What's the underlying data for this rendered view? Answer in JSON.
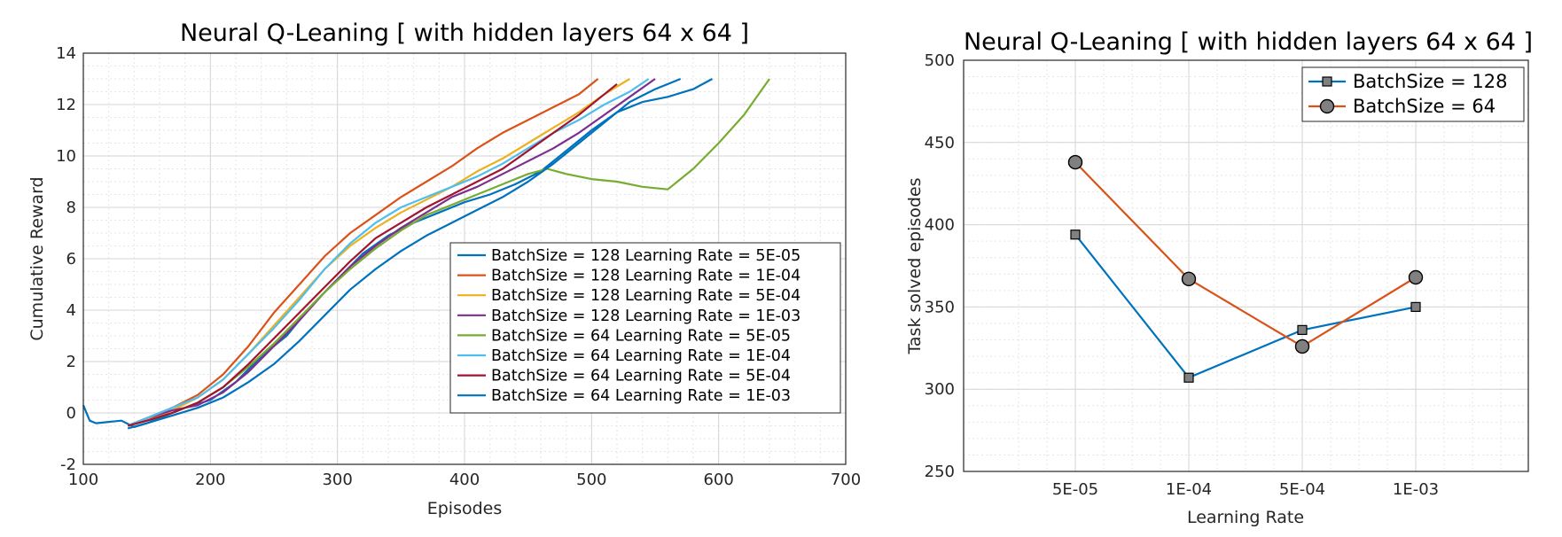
{
  "chart_data": [
    {
      "type": "line",
      "title": "Neural Q-Leaning [ with hidden layers 64 x 64 ]",
      "xlabel": "Episodes",
      "ylabel": "Cumulative Reward",
      "xlim": [
        100,
        700
      ],
      "ylim": [
        -2,
        14
      ],
      "xticks": [
        "100",
        "200",
        "300",
        "400",
        "500",
        "600",
        "700"
      ],
      "yticks": [
        "-2",
        "0",
        "2",
        "4",
        "6",
        "8",
        "10",
        "12",
        "14"
      ],
      "grid": true,
      "legend_position": "center-right",
      "series": [
        {
          "name": "BatchSize = 128 Learning Rate = 5E-05",
          "color": "#0072BD",
          "x": [
            100,
            105,
            110,
            120,
            130,
            140,
            150,
            160,
            170,
            180,
            200,
            220,
            240,
            260,
            280,
            300,
            320,
            340,
            360,
            380,
            400,
            420,
            440,
            460,
            480,
            500,
            520,
            540,
            560,
            580,
            595
          ],
          "y": [
            0.3,
            -0.3,
            -0.4,
            -0.35,
            -0.3,
            -0.55,
            -0.4,
            -0.2,
            0.0,
            0.2,
            0.5,
            1.2,
            2.2,
            3.0,
            4.2,
            5.2,
            6.2,
            6.9,
            7.4,
            7.8,
            8.2,
            8.5,
            8.9,
            9.4,
            10.2,
            11.0,
            11.7,
            12.1,
            12.3,
            12.6,
            13.0
          ]
        },
        {
          "name": "BatchSize = 128 Learning Rate = 1E-04",
          "color": "#D95319",
          "x": [
            135,
            150,
            170,
            190,
            210,
            230,
            250,
            270,
            290,
            310,
            330,
            350,
            370,
            390,
            410,
            430,
            450,
            470,
            490,
            505
          ],
          "y": [
            -0.5,
            -0.2,
            0.2,
            0.7,
            1.5,
            2.6,
            3.9,
            5.0,
            6.1,
            7.0,
            7.7,
            8.4,
            9.0,
            9.6,
            10.3,
            10.9,
            11.4,
            11.9,
            12.4,
            13.0
          ]
        },
        {
          "name": "BatchSize = 128 Learning Rate = 5E-04",
          "color": "#EDB120",
          "x": [
            135,
            150,
            170,
            190,
            210,
            230,
            250,
            270,
            290,
            310,
            330,
            350,
            370,
            390,
            410,
            430,
            450,
            470,
            490,
            510,
            530
          ],
          "y": [
            -0.5,
            -0.3,
            0.1,
            0.6,
            1.3,
            2.3,
            3.4,
            4.5,
            5.6,
            6.5,
            7.2,
            7.8,
            8.3,
            8.8,
            9.4,
            9.9,
            10.5,
            11.1,
            11.7,
            12.4,
            13.0
          ]
        },
        {
          "name": "BatchSize = 128 Learning Rate = 1E-03",
          "color": "#7E2F8E",
          "x": [
            135,
            150,
            170,
            190,
            210,
            230,
            250,
            270,
            290,
            310,
            330,
            350,
            370,
            390,
            410,
            430,
            450,
            470,
            490,
            510,
            530,
            550
          ],
          "y": [
            -0.5,
            -0.2,
            0.1,
            0.3,
            0.8,
            1.6,
            2.6,
            3.6,
            4.7,
            5.7,
            6.5,
            7.2,
            7.8,
            8.4,
            8.8,
            9.3,
            9.8,
            10.3,
            10.9,
            11.6,
            12.3,
            13.0
          ]
        },
        {
          "name": "BatchSize = 64  Learning Rate = 5E-05",
          "color": "#77AC30",
          "x": [
            135,
            150,
            170,
            190,
            210,
            230,
            250,
            270,
            290,
            310,
            330,
            350,
            370,
            390,
            410,
            430,
            450,
            465,
            480,
            500,
            520,
            540,
            560,
            580,
            600,
            620,
            640
          ],
          "y": [
            -0.5,
            -0.3,
            0.0,
            0.4,
            1.0,
            1.8,
            2.7,
            3.7,
            4.7,
            5.6,
            6.4,
            7.1,
            7.7,
            8.1,
            8.5,
            8.9,
            9.3,
            9.5,
            9.3,
            9.1,
            9.0,
            8.8,
            8.7,
            9.5,
            10.5,
            11.6,
            13.0
          ]
        },
        {
          "name": "BatchSize = 64  Learning Rate = 1E-04",
          "color": "#4DBEEE",
          "x": [
            135,
            150,
            170,
            190,
            210,
            230,
            250,
            270,
            290,
            310,
            330,
            350,
            370,
            390,
            410,
            430,
            450,
            470,
            490,
            510,
            530,
            545
          ],
          "y": [
            -0.5,
            -0.2,
            0.2,
            0.6,
            1.3,
            2.3,
            3.3,
            4.4,
            5.6,
            6.6,
            7.4,
            8.0,
            8.4,
            8.8,
            9.2,
            9.7,
            10.3,
            10.9,
            11.4,
            12.0,
            12.5,
            13.0
          ]
        },
        {
          "name": "BatchSize = 64  Learning Rate = 5E-04",
          "color": "#A2142F",
          "x": [
            135,
            150,
            170,
            190,
            210,
            230,
            250,
            270,
            290,
            310,
            330,
            350,
            370,
            390,
            410,
            430,
            450,
            470,
            490,
            505,
            520
          ],
          "y": [
            -0.5,
            -0.3,
            0.0,
            0.4,
            1.0,
            1.9,
            2.9,
            3.9,
            4.9,
            5.9,
            6.8,
            7.4,
            8.0,
            8.5,
            9.0,
            9.5,
            10.2,
            10.9,
            11.6,
            12.2,
            12.8
          ]
        },
        {
          "name": "BatchSize = 64  Learning Rate = 1E-03",
          "color": "#0072BD",
          "x": [
            135,
            150,
            170,
            190,
            210,
            230,
            250,
            270,
            290,
            310,
            330,
            350,
            370,
            390,
            410,
            430,
            450,
            470,
            490,
            510,
            530,
            550,
            570
          ],
          "y": [
            -0.6,
            -0.4,
            -0.1,
            0.2,
            0.6,
            1.2,
            1.9,
            2.8,
            3.8,
            4.8,
            5.6,
            6.3,
            6.9,
            7.4,
            7.9,
            8.4,
            9.0,
            9.7,
            10.5,
            11.3,
            12.1,
            12.6,
            13.0
          ]
        }
      ]
    },
    {
      "type": "line",
      "title": "Neural Q-Leaning [ with hidden layers 64 x 64 ]",
      "xlabel": "Learning Rate",
      "ylabel": "Task solved episodes",
      "categories": [
        "5E-05",
        "1E-04",
        "5E-04",
        "1E-03"
      ],
      "ylim": [
        250,
        500
      ],
      "yticks": [
        "250",
        "300",
        "350",
        "400",
        "450",
        "500"
      ],
      "grid": true,
      "legend_position": "top-right",
      "series": [
        {
          "name": "BatchSize = 128",
          "color": "#0072BD",
          "marker": "square",
          "values": [
            394,
            307,
            336,
            350
          ]
        },
        {
          "name": "BatchSize = 64",
          "color": "#D95319",
          "marker": "circle",
          "values": [
            438,
            367,
            326,
            368
          ]
        }
      ]
    }
  ]
}
